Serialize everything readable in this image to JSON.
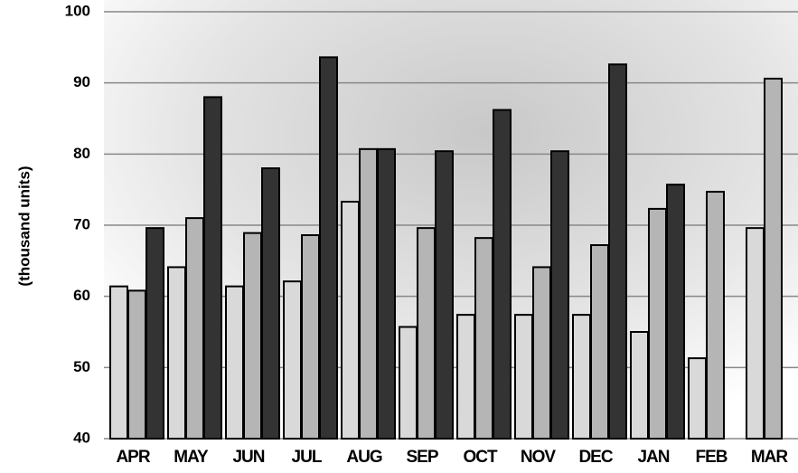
{
  "chart_data": {
    "type": "bar",
    "y_label": "(thousand units)",
    "categories": [
      "APR",
      "MAY",
      "JUN",
      "JUL",
      "AUG",
      "SEP",
      "OCT",
      "NOV",
      "DEC",
      "JAN",
      "FEB",
      "MAR"
    ],
    "series": [
      {
        "color": "#d9d9d9",
        "values": [
          61.4,
          64.1,
          61.4,
          62.1,
          73.3,
          55.7,
          57.4,
          57.4,
          57.4,
          55.0,
          51.3,
          69.6
        ]
      },
      {
        "color": "#b5b5b5",
        "values": [
          60.8,
          71.0,
          68.9,
          68.6,
          80.7,
          69.6,
          68.2,
          64.1,
          67.2,
          72.3,
          74.7,
          90.6
        ]
      },
      {
        "color": "#333333",
        "values": [
          69.6,
          88.0,
          78.0,
          93.6,
          80.7,
          80.4,
          86.2,
          80.4,
          92.6,
          75.7,
          null,
          null
        ]
      }
    ],
    "ylim": [
      40,
      100
    ],
    "yticks": [
      40,
      50,
      60,
      70,
      80,
      90,
      100
    ],
    "grid": true
  }
}
